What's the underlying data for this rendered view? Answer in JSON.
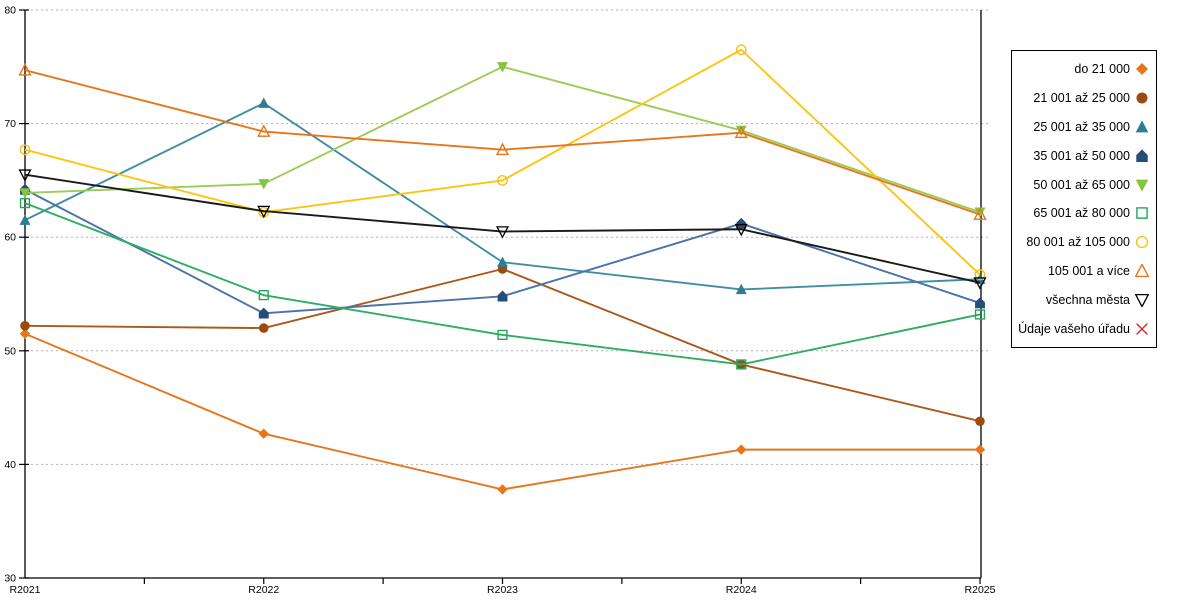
{
  "chart_data": {
    "type": "line",
    "title": "",
    "xlabel": "",
    "ylabel": "",
    "categories": [
      "R2021",
      "R2022",
      "R2023",
      "R2024",
      "R2025"
    ],
    "y_ticks": [
      30,
      40,
      50,
      60,
      70,
      80
    ],
    "ylim": [
      30,
      80
    ],
    "grid": "horizontal-dotted",
    "legend_position": "right-outside",
    "axis_color": "#000000",
    "gridline_color": "#b0b0b0",
    "series": [
      {
        "name": "do 21 000",
        "marker": "diamond-filled",
        "color": "#e8751a",
        "line_color": "#e8751a",
        "values": [
          51.5,
          42.7,
          37.8,
          41.3,
          41.3
        ]
      },
      {
        "name": "21 001 až 25 000",
        "marker": "circle-filled",
        "color": "#9c4a0d",
        "line_color": "#a9591b",
        "values": [
          52.2,
          52.0,
          57.2,
          48.8,
          43.8
        ]
      },
      {
        "name": "25 001 až 35 000",
        "marker": "triangle-up-filled",
        "color": "#2e7d94",
        "line_color": "#3f8ea5",
        "values": [
          61.5,
          71.8,
          57.8,
          55.4,
          56.3
        ]
      },
      {
        "name": "35 001 až 50 000",
        "marker": "pentagon-filled",
        "color": "#254e77",
        "line_color": "#4c72a8",
        "values": [
          64.2,
          53.3,
          54.8,
          61.2,
          54.2
        ]
      },
      {
        "name": "50 001 až 65 000",
        "marker": "triangle-down-filled",
        "color": "#86c440",
        "line_color": "#9bcc56",
        "values": [
          63.9,
          64.7,
          75.0,
          69.4,
          62.2
        ]
      },
      {
        "name": "65 001 až 80 000",
        "marker": "square-open",
        "color": "#21a75d",
        "line_color": "#2ead63",
        "values": [
          63.0,
          54.9,
          51.4,
          48.8,
          53.2
        ]
      },
      {
        "name": "80 001 až 105 000",
        "marker": "circle-open",
        "color": "#f5c211",
        "line_color": "#fcc511",
        "values": [
          67.7,
          62.2,
          65.0,
          76.5,
          56.7
        ]
      },
      {
        "name": "105 001 a více",
        "marker": "triangle-up-open",
        "color": "#e8751a",
        "line_color": "#e8751a",
        "values": [
          74.7,
          69.3,
          67.7,
          69.2,
          62.0
        ]
      },
      {
        "name": "všechna města",
        "marker": "triangle-down-open",
        "color": "#000000",
        "line_color": "#1a1a1a",
        "values": [
          65.5,
          62.3,
          60.5,
          60.7,
          56.0
        ]
      },
      {
        "name": "Údaje vašeho úřadu",
        "marker": "x",
        "color": "#d92b2b",
        "line_color": "#d92b2b",
        "values": []
      }
    ]
  }
}
